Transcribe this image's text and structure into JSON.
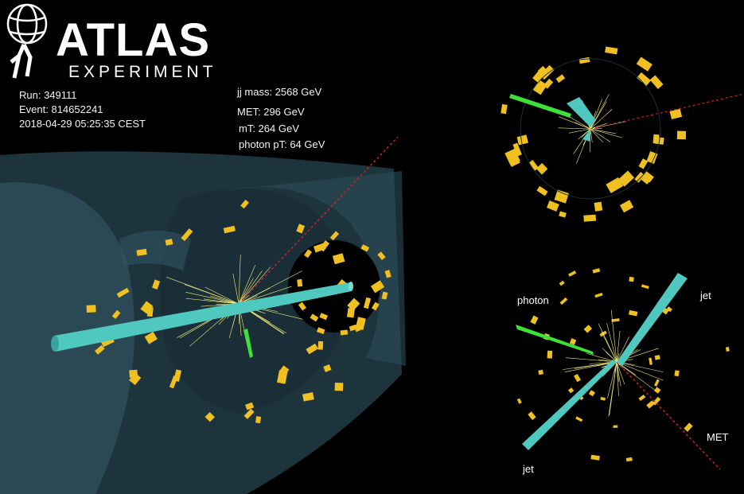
{
  "logo": {
    "title": "ATLAS",
    "subtitle": "EXPERIMENT"
  },
  "event_info": {
    "run": "Run: 349111",
    "event": "Event: 814652241",
    "datetime": "2018-04-29 05:25:35 CEST"
  },
  "kinematics": {
    "jj_mass": "jj mass: 2568 GeV",
    "met": "MET: 296 GeV",
    "mt": "mT: 264 GeV",
    "photon_pt": "photon pT: 64 GeV"
  },
  "side_view_labels": {
    "photon": "photon",
    "jet_top": "jet",
    "met": "MET",
    "jet_bottom": "jet"
  },
  "colors": {
    "background": "#000000",
    "detector": "#2a4a55",
    "jet": "#4fc9c0",
    "photon": "#3ee03a",
    "met": "#d02020",
    "calorimeter_deposit": "#f0c020",
    "track": "#f5f080"
  }
}
